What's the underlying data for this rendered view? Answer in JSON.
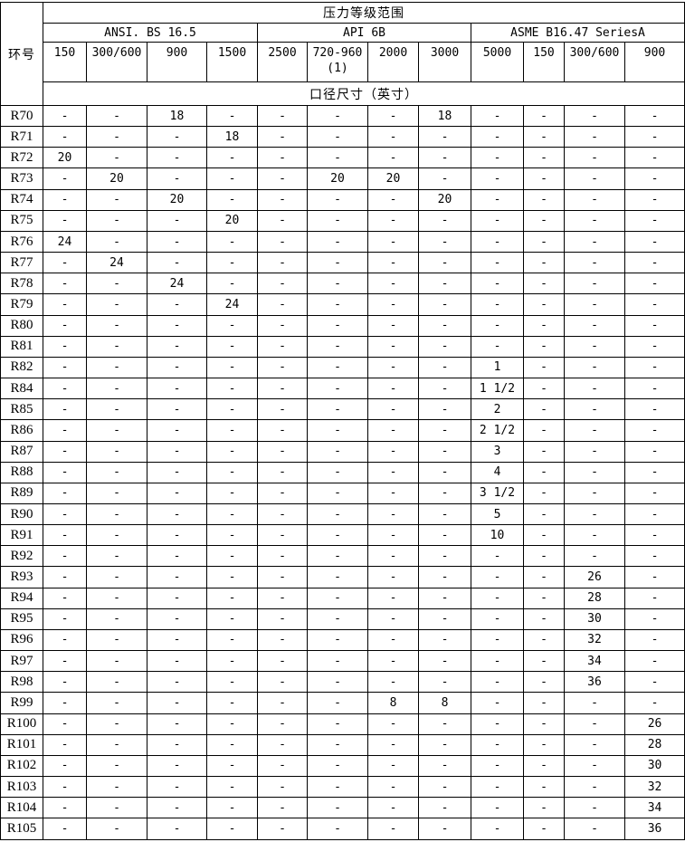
{
  "table": {
    "corner_label": "环号",
    "title": "压力等级范围",
    "groups": [
      {
        "label": "ANSI. BS 16.5"
      },
      {
        "label": "API 6B"
      },
      {
        "label": "ASME B16.47 SeriesA"
      }
    ],
    "pressure_classes": [
      "150",
      "300/600",
      "900",
      "1500",
      "2500",
      "720-960\n(1)",
      "2000",
      "3000",
      "5000",
      "150",
      "300/600",
      "900"
    ],
    "size_header": "口径尺寸（英寸）",
    "rows": [
      {
        "label": "R70",
        "values": [
          "-",
          "-",
          "18",
          "-",
          "-",
          "-",
          "-",
          "18",
          "-",
          "-",
          "-",
          "-"
        ]
      },
      {
        "label": "R71",
        "values": [
          "-",
          "-",
          "-",
          "18",
          "-",
          "-",
          "-",
          "-",
          "-",
          "-",
          "-",
          "-"
        ]
      },
      {
        "label": "R72",
        "values": [
          "20",
          "-",
          "-",
          "-",
          "-",
          "-",
          "-",
          "-",
          "-",
          "-",
          "-",
          "-"
        ]
      },
      {
        "label": "R73",
        "values": [
          "-",
          "20",
          "-",
          "-",
          "-",
          "20",
          "20",
          "-",
          "-",
          "-",
          "-",
          "-"
        ]
      },
      {
        "label": "R74",
        "values": [
          "-",
          "-",
          "20",
          "-",
          "-",
          "-",
          "-",
          "20",
          "-",
          "-",
          "-",
          "-"
        ]
      },
      {
        "label": "R75",
        "values": [
          "-",
          "-",
          "-",
          "20",
          "-",
          "-",
          "-",
          "-",
          "-",
          "-",
          "-",
          "-"
        ]
      },
      {
        "label": "R76",
        "values": [
          "24",
          "-",
          "-",
          "-",
          "-",
          "-",
          "-",
          "-",
          "-",
          "-",
          "-",
          "-"
        ]
      },
      {
        "label": "R77",
        "values": [
          "-",
          "24",
          "-",
          "-",
          "-",
          "-",
          "-",
          "-",
          "-",
          "-",
          "-",
          "-"
        ]
      },
      {
        "label": "R78",
        "values": [
          "-",
          "-",
          "24",
          "-",
          "-",
          "-",
          "-",
          "-",
          "-",
          "-",
          "-",
          "-"
        ]
      },
      {
        "label": "R79",
        "values": [
          "-",
          "-",
          "-",
          "24",
          "-",
          "-",
          "-",
          "-",
          "-",
          "-",
          "-",
          "-"
        ]
      },
      {
        "label": "R80",
        "values": [
          "-",
          "-",
          "-",
          "-",
          "-",
          "-",
          "-",
          "-",
          "-",
          "-",
          "-",
          "-"
        ]
      },
      {
        "label": "R81",
        "values": [
          "-",
          "-",
          "-",
          "-",
          "-",
          "-",
          "-",
          "-",
          "-",
          "-",
          "-",
          "-"
        ]
      },
      {
        "label": "R82",
        "values": [
          "-",
          "-",
          "-",
          "-",
          "-",
          "-",
          "-",
          "-",
          "1",
          "-",
          "-",
          "-"
        ]
      },
      {
        "label": "R84",
        "values": [
          "-",
          "-",
          "-",
          "-",
          "-",
          "-",
          "-",
          "-",
          "1 1/2",
          "-",
          "-",
          "-"
        ]
      },
      {
        "label": "R85",
        "values": [
          "-",
          "-",
          "-",
          "-",
          "-",
          "-",
          "-",
          "-",
          "2",
          "-",
          "-",
          "-"
        ]
      },
      {
        "label": "R86",
        "values": [
          "-",
          "-",
          "-",
          "-",
          "-",
          "-",
          "-",
          "-",
          "2 1/2",
          "-",
          "-",
          "-"
        ]
      },
      {
        "label": "R87",
        "values": [
          "-",
          "-",
          "-",
          "-",
          "-",
          "-",
          "-",
          "-",
          "3",
          "-",
          "-",
          "-"
        ]
      },
      {
        "label": "R88",
        "values": [
          "-",
          "-",
          "-",
          "-",
          "-",
          "-",
          "-",
          "-",
          "4",
          "-",
          "-",
          "-"
        ]
      },
      {
        "label": "R89",
        "values": [
          "-",
          "-",
          "-",
          "-",
          "-",
          "-",
          "-",
          "-",
          "3 1/2",
          "-",
          "-",
          "-"
        ]
      },
      {
        "label": "R90",
        "values": [
          "-",
          "-",
          "-",
          "-",
          "-",
          "-",
          "-",
          "-",
          "5",
          "-",
          "-",
          "-"
        ]
      },
      {
        "label": "R91",
        "values": [
          "-",
          "-",
          "-",
          "-",
          "-",
          "-",
          "-",
          "-",
          "10",
          "-",
          "-",
          "-"
        ]
      },
      {
        "label": "R92",
        "values": [
          "-",
          "-",
          "-",
          "-",
          "-",
          "-",
          "-",
          "-",
          "-",
          "-",
          "-",
          "-"
        ]
      },
      {
        "label": "R93",
        "values": [
          "-",
          "-",
          "-",
          "-",
          "-",
          "-",
          "-",
          "-",
          "-",
          "-",
          "26",
          "-"
        ]
      },
      {
        "label": "R94",
        "values": [
          "-",
          "-",
          "-",
          "-",
          "-",
          "-",
          "-",
          "-",
          "-",
          "-",
          "28",
          "-"
        ]
      },
      {
        "label": "R95",
        "values": [
          "-",
          "-",
          "-",
          "-",
          "-",
          "-",
          "-",
          "-",
          "-",
          "-",
          "30",
          "-"
        ]
      },
      {
        "label": "R96",
        "values": [
          "-",
          "-",
          "-",
          "-",
          "-",
          "-",
          "-",
          "-",
          "-",
          "-",
          "32",
          "-"
        ]
      },
      {
        "label": "R97",
        "values": [
          "-",
          "-",
          "-",
          "-",
          "-",
          "-",
          "-",
          "-",
          "-",
          "-",
          "34",
          "-"
        ]
      },
      {
        "label": "R98",
        "values": [
          "-",
          "-",
          "-",
          "-",
          "-",
          "-",
          "-",
          "-",
          "-",
          "-",
          "36",
          "-"
        ]
      },
      {
        "label": "R99",
        "values": [
          "-",
          "-",
          "-",
          "-",
          "-",
          "-",
          "8",
          "8",
          "-",
          "-",
          "-",
          "-"
        ]
      },
      {
        "label": "R100",
        "values": [
          "-",
          "-",
          "-",
          "-",
          "-",
          "-",
          "-",
          "-",
          "-",
          "-",
          "-",
          "26"
        ]
      },
      {
        "label": "R101",
        "values": [
          "-",
          "-",
          "-",
          "-",
          "-",
          "-",
          "-",
          "-",
          "-",
          "-",
          "-",
          "28"
        ]
      },
      {
        "label": "R102",
        "values": [
          "-",
          "-",
          "-",
          "-",
          "-",
          "-",
          "-",
          "-",
          "-",
          "-",
          "-",
          "30"
        ]
      },
      {
        "label": "R103",
        "values": [
          "-",
          "-",
          "-",
          "-",
          "-",
          "-",
          "-",
          "-",
          "-",
          "-",
          "-",
          "32"
        ]
      },
      {
        "label": "R104",
        "values": [
          "-",
          "-",
          "-",
          "-",
          "-",
          "-",
          "-",
          "-",
          "-",
          "-",
          "-",
          "34"
        ]
      },
      {
        "label": "R105",
        "values": [
          "-",
          "-",
          "-",
          "-",
          "-",
          "-",
          "-",
          "-",
          "-",
          "-",
          "-",
          "36"
        ]
      }
    ]
  }
}
